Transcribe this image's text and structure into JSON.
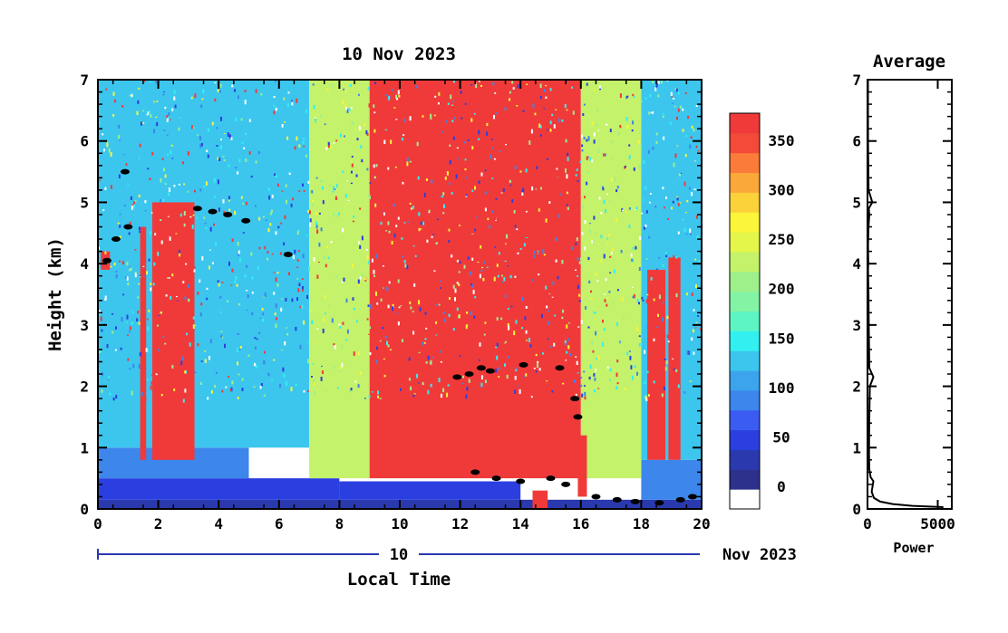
{
  "main_chart": {
    "title": "10 Nov 2023",
    "ylabel": "Height (km)",
    "xlabel": "Local Time",
    "date_bar_label": "10",
    "date_bar_suffix": "Nov 2023",
    "x_ticks": [
      "0",
      "2",
      "4",
      "6",
      "8",
      "10",
      "12",
      "14",
      "16",
      "18",
      "20"
    ],
    "y_ticks": [
      "0",
      "1",
      "2",
      "3",
      "4",
      "5",
      "6",
      "7"
    ]
  },
  "colorbar": {
    "labels": [
      "0",
      "50",
      "100",
      "150",
      "200",
      "250",
      "300",
      "350"
    ],
    "colors": [
      "#ffffff",
      "#2d318c",
      "#2a3aae",
      "#2b3fe0",
      "#3b5cf2",
      "#3c86ec",
      "#3ba4ec",
      "#3cc6ee",
      "#33f0f0",
      "#5ef5c4",
      "#83f4a4",
      "#9ef08a",
      "#c4f26a",
      "#e4f64a",
      "#fbf63a",
      "#fbd23a",
      "#fba83a",
      "#fb7c3a",
      "#f34a3a",
      "#f03a3a"
    ]
  },
  "avg_chart": {
    "title": "Average",
    "xlabel": "Power",
    "x_ticks": [
      "0",
      "5000"
    ],
    "y_ticks": [
      "0",
      "1",
      "2",
      "3",
      "4",
      "5",
      "6",
      "7"
    ]
  },
  "chart_data": [
    {
      "type": "heatmap",
      "title": "10 Nov 2023",
      "xlabel": "Local Time",
      "ylabel": "Height (km)",
      "xlim": [
        0,
        20
      ],
      "ylim": [
        0,
        7
      ],
      "colorbar_range": [
        0,
        380
      ],
      "layers": [
        {
          "x": [
            0,
            20
          ],
          "y": [
            0,
            0.15
          ],
          "value": 30
        },
        {
          "x": [
            0,
            8
          ],
          "y": [
            0.15,
            0.5
          ],
          "value": 40
        },
        {
          "x": [
            8,
            14
          ],
          "y": [
            0.15,
            0.45
          ],
          "value": 50
        },
        {
          "x": [
            0,
            5
          ],
          "y": [
            0.5,
            1.0
          ],
          "value": 80
        },
        {
          "x": [
            18,
            20
          ],
          "y": [
            0.15,
            0.8
          ],
          "value": 80
        },
        {
          "x": [
            0,
            7
          ],
          "y": [
            1.0,
            7.0
          ],
          "value": 130
        },
        {
          "x": [
            7,
            9
          ],
          "y": [
            0.5,
            7.0
          ],
          "value": 230
        },
        {
          "x": [
            9,
            16
          ],
          "y": [
            0.5,
            7.0
          ],
          "value": 360
        },
        {
          "x": [
            16,
            18
          ],
          "y": [
            0.5,
            7.0
          ],
          "value": 230
        },
        {
          "x": [
            18,
            20
          ],
          "y": [
            0.8,
            7.0
          ],
          "value": 120
        },
        {
          "x": [
            1.8,
            3.2
          ],
          "y": [
            0.8,
            5.0
          ],
          "value": 370
        },
        {
          "x": [
            1.4,
            1.6
          ],
          "y": [
            0.8,
            4.6
          ],
          "value": 370
        },
        {
          "x": [
            0.1,
            0.4
          ],
          "y": [
            3.9,
            4.2
          ],
          "value": 370
        },
        {
          "x": [
            18.2,
            18.8
          ],
          "y": [
            0.8,
            3.9
          ],
          "value": 370
        },
        {
          "x": [
            18.9,
            19.3
          ],
          "y": [
            0.8,
            4.1
          ],
          "value": 370
        },
        {
          "x": [
            14.4,
            14.9
          ],
          "y": [
            0.0,
            0.3
          ],
          "value": 370
        },
        {
          "x": [
            15.9,
            16.2
          ],
          "y": [
            0.2,
            1.2
          ],
          "value": 370
        }
      ],
      "cloud_markers": [
        {
          "x": 0.3,
          "y": 4.05
        },
        {
          "x": 0.6,
          "y": 4.4
        },
        {
          "x": 1.0,
          "y": 4.6
        },
        {
          "x": 0.9,
          "y": 5.5
        },
        {
          "x": 3.3,
          "y": 4.9
        },
        {
          "x": 3.8,
          "y": 4.85
        },
        {
          "x": 4.3,
          "y": 4.8
        },
        {
          "x": 4.9,
          "y": 4.7
        },
        {
          "x": 6.3,
          "y": 4.15
        },
        {
          "x": 11.9,
          "y": 2.15
        },
        {
          "x": 12.3,
          "y": 2.2
        },
        {
          "x": 12.7,
          "y": 2.3
        },
        {
          "x": 13.0,
          "y": 2.25
        },
        {
          "x": 14.1,
          "y": 2.35
        },
        {
          "x": 15.3,
          "y": 2.3
        },
        {
          "x": 15.8,
          "y": 1.8
        },
        {
          "x": 15.9,
          "y": 1.5
        },
        {
          "x": 12.5,
          "y": 0.6
        },
        {
          "x": 13.2,
          "y": 0.5
        },
        {
          "x": 14.0,
          "y": 0.45
        },
        {
          "x": 15.0,
          "y": 0.5
        },
        {
          "x": 15.5,
          "y": 0.4
        },
        {
          "x": 16.5,
          "y": 0.2
        },
        {
          "x": 17.2,
          "y": 0.15
        },
        {
          "x": 17.8,
          "y": 0.12
        },
        {
          "x": 18.6,
          "y": 0.1
        },
        {
          "x": 19.3,
          "y": 0.15
        },
        {
          "x": 19.7,
          "y": 0.2
        }
      ]
    },
    {
      "type": "line",
      "title": "Average",
      "xlabel": "Power",
      "xlim": [
        0,
        6000
      ],
      "ylim": [
        0,
        7
      ],
      "series": [
        {
          "x": [
            5400,
            3200,
            1800,
            900,
            450,
            300,
            420,
            220,
            130,
            110,
            120,
            170,
            420,
            130,
            90,
            70,
            40,
            60,
            40,
            70,
            130,
            90,
            340,
            80,
            40,
            30
          ],
          "y": [
            0.03,
            0.05,
            0.08,
            0.12,
            0.18,
            0.28,
            0.45,
            0.52,
            0.65,
            0.9,
            1.4,
            2.0,
            2.15,
            2.3,
            3.0,
            3.5,
            3.9,
            4.0,
            4.3,
            4.6,
            4.8,
            4.9,
            5.0,
            5.2,
            6.0,
            7.0
          ]
        }
      ]
    }
  ]
}
